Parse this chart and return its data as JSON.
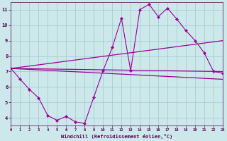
{
  "xlabel": "Windchill (Refroidissement éolien,°C)",
  "bg_color": "#cce8ea",
  "grid_color": "#a0c8cc",
  "line_color": "#990099",
  "xlim": [
    0,
    23
  ],
  "ylim": [
    3.5,
    11.5
  ],
  "xticks": [
    0,
    1,
    2,
    3,
    4,
    5,
    6,
    7,
    8,
    9,
    10,
    11,
    12,
    13,
    14,
    15,
    16,
    17,
    18,
    19,
    20,
    21,
    22,
    23
  ],
  "yticks": [
    4,
    5,
    6,
    7,
    8,
    9,
    10,
    11
  ],
  "main_x": [
    0,
    1,
    2,
    3,
    4,
    5,
    6,
    7,
    8,
    9,
    10,
    11,
    12,
    13,
    14,
    15,
    16,
    17,
    18,
    19,
    20,
    21,
    22,
    23
  ],
  "main_y": [
    7.2,
    6.5,
    5.85,
    5.3,
    4.15,
    3.85,
    4.1,
    3.75,
    3.65,
    5.35,
    7.05,
    8.55,
    10.45,
    7.05,
    11.0,
    11.35,
    10.55,
    11.1,
    10.4,
    9.65,
    9.0,
    8.2,
    7.0,
    6.9
  ],
  "line1_x": [
    0,
    23
  ],
  "line1_y": [
    7.2,
    6.5
  ],
  "line2_x": [
    0,
    23
  ],
  "line2_y": [
    7.2,
    7.0
  ],
  "line3_x": [
    0,
    23
  ],
  "line3_y": [
    7.2,
    9.0
  ]
}
